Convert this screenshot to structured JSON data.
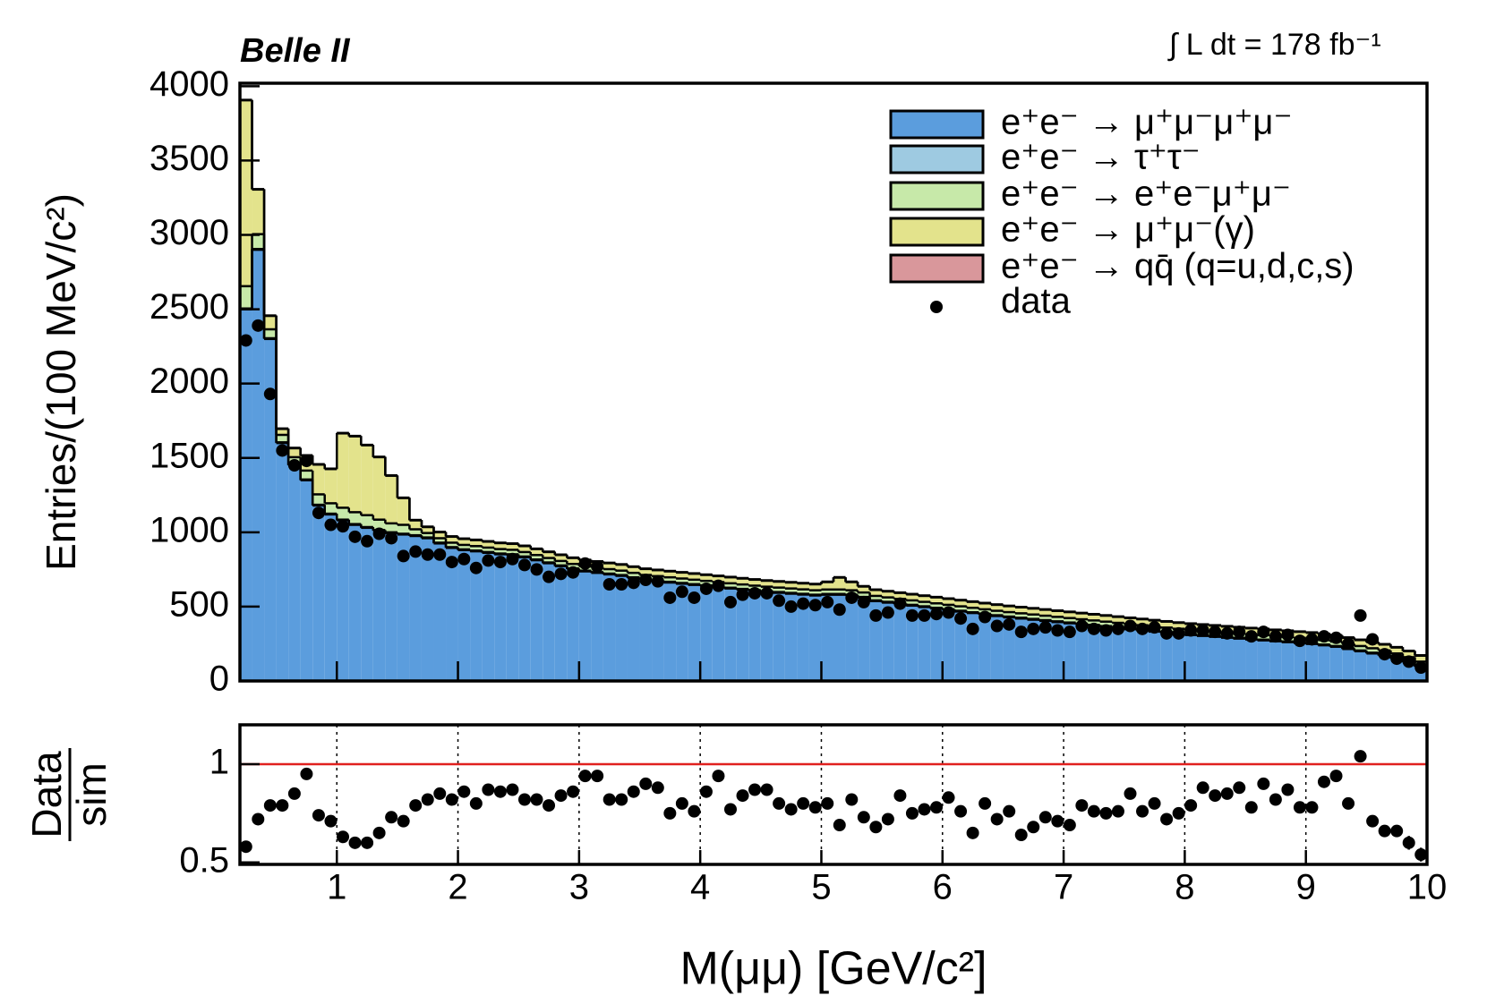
{
  "chart_data": [
    {
      "type": "histogram",
      "experiment": "Belle II",
      "luminosity": "∫ L dt = 178 fb⁻¹",
      "ylabel": "Entries/(100 MeV/c²)",
      "xlim": [
        0.2,
        10
      ],
      "ylim": [
        0,
        4020
      ],
      "yticks": [
        0,
        500,
        1000,
        1500,
        2000,
        2500,
        3000,
        3500,
        4000
      ],
      "bins": [
        0.2,
        0.3,
        0.4,
        0.5,
        0.6,
        0.7,
        0.8,
        0.9,
        1.0,
        1.1,
        1.2,
        1.3,
        1.4,
        1.5,
        1.6,
        1.7,
        1.8,
        1.9,
        2.0,
        2.1,
        2.2,
        2.3,
        2.4,
        2.5,
        2.6,
        2.7,
        2.8,
        2.9,
        3.0,
        3.1,
        3.2,
        3.3,
        3.4,
        3.5,
        3.6,
        3.7,
        3.8,
        3.9,
        4.0,
        4.1,
        4.2,
        4.3,
        4.4,
        4.5,
        4.6,
        4.7,
        4.8,
        4.9,
        5.0,
        5.1,
        5.2,
        5.3,
        5.4,
        5.5,
        5.6,
        5.7,
        5.8,
        5.9,
        6.0,
        6.1,
        6.2,
        6.3,
        6.4,
        6.5,
        6.6,
        6.7,
        6.8,
        6.9,
        7.0,
        7.1,
        7.2,
        7.3,
        7.4,
        7.5,
        7.6,
        7.7,
        7.8,
        7.9,
        8.0,
        8.1,
        8.2,
        8.3,
        8.4,
        8.5,
        8.6,
        8.7,
        8.8,
        8.9,
        9.0,
        9.1,
        9.2,
        9.3,
        9.4,
        9.5,
        9.6,
        9.7,
        9.8,
        9.9,
        10.0
      ],
      "stacked": true,
      "series": [
        {
          "name": "e⁺e⁻ → μ⁺μ⁻μ⁺μ⁻",
          "color": "#5b9ddd",
          "values": [
            2500,
            2900,
            2300,
            1600,
            1450,
            1350,
            1180,
            1120,
            1080,
            1050,
            1030,
            1010,
            995,
            985,
            975,
            960,
            925,
            895,
            880,
            872,
            862,
            852,
            847,
            832,
            812,
            792,
            772,
            752,
            737,
            727,
            717,
            707,
            692,
            678,
            670,
            662,
            654,
            646,
            638,
            630,
            622,
            614,
            606,
            599,
            593,
            587,
            581,
            575,
            580,
            580,
            575,
            560,
            537,
            527,
            517,
            507,
            497,
            487,
            477,
            467,
            457,
            447,
            437,
            428,
            420,
            412,
            404,
            396,
            388,
            380,
            372,
            364,
            356,
            348,
            340,
            332,
            324,
            316,
            309,
            303,
            297,
            291,
            285,
            279,
            273,
            267,
            261,
            255,
            249,
            240,
            230,
            215,
            200,
            185,
            170,
            150,
            125,
            95
          ]
        },
        {
          "name": "e⁺e⁻ → τ⁺τ⁻",
          "color": "#9ecae1",
          "values": [
            5,
            5,
            5,
            5,
            5,
            5,
            5,
            5,
            5,
            5,
            5,
            5,
            5,
            5,
            5,
            5,
            5,
            5,
            5,
            5,
            5,
            5,
            5,
            5,
            5,
            5,
            5,
            5,
            5,
            5,
            5,
            5,
            5,
            5,
            5,
            5,
            5,
            5,
            5,
            5,
            5,
            5,
            5,
            5,
            5,
            5,
            5,
            5,
            5,
            5,
            5,
            5,
            5,
            5,
            5,
            5,
            5,
            5,
            5,
            5,
            5,
            5,
            5,
            5,
            5,
            5,
            5,
            5,
            5,
            5,
            5,
            5,
            5,
            5,
            5,
            5,
            5,
            5,
            5,
            5,
            5,
            5,
            5,
            5,
            5,
            5,
            5,
            5,
            5,
            5,
            5,
            5,
            5,
            5,
            5,
            5,
            5,
            5
          ]
        },
        {
          "name": "e⁺e⁻ → e⁺e⁻μ⁺μ⁻",
          "color": "#c7e9a9",
          "values": [
            150,
            100,
            60,
            50,
            50,
            60,
            70,
            70,
            80,
            80,
            80,
            70,
            60,
            60,
            40,
            30,
            30,
            30,
            30,
            30,
            30,
            30,
            30,
            30,
            30,
            30,
            30,
            30,
            30,
            30,
            30,
            30,
            30,
            30,
            30,
            30,
            30,
            30,
            30,
            30,
            30,
            30,
            30,
            30,
            30,
            30,
            30,
            30,
            30,
            30,
            30,
            30,
            30,
            30,
            30,
            30,
            30,
            30,
            30,
            30,
            30,
            30,
            30,
            30,
            30,
            30,
            30,
            30,
            30,
            30,
            30,
            30,
            30,
            30,
            30,
            30,
            30,
            30,
            30,
            30,
            30,
            30,
            30,
            30,
            30,
            30,
            30,
            30,
            30,
            30,
            30,
            30,
            30,
            30,
            30,
            30,
            30,
            30
          ]
        },
        {
          "name": "e⁺e⁻ → μ⁺μ⁻(γ)",
          "color": "#e3e38c",
          "values": [
            1250,
            300,
            90,
            40,
            60,
            100,
            200,
            230,
            500,
            510,
            470,
            420,
            320,
            180,
            60,
            40,
            40,
            40,
            40,
            40,
            40,
            40,
            40,
            40,
            40,
            40,
            40,
            40,
            40,
            40,
            40,
            40,
            40,
            40,
            40,
            40,
            40,
            40,
            40,
            40,
            40,
            40,
            40,
            40,
            40,
            40,
            40,
            40,
            50,
            80,
            55,
            40,
            40,
            40,
            40,
            40,
            40,
            40,
            40,
            40,
            40,
            40,
            40,
            40,
            40,
            40,
            40,
            40,
            40,
            40,
            40,
            40,
            40,
            40,
            40,
            40,
            40,
            40,
            40,
            40,
            40,
            40,
            40,
            40,
            40,
            40,
            40,
            40,
            40,
            40,
            40,
            40,
            40,
            40,
            40,
            40,
            40,
            40
          ]
        },
        {
          "name": "e⁺e⁻ → qq̄ (q=u,d,c,s)",
          "color": "#d9979b",
          "values": [
            3,
            3,
            3,
            3,
            3,
            3,
            3,
            3,
            3,
            3,
            3,
            3,
            3,
            3,
            3,
            3,
            3,
            3,
            3,
            3,
            3,
            3,
            3,
            3,
            3,
            3,
            3,
            3,
            3,
            3,
            3,
            3,
            3,
            3,
            3,
            3,
            3,
            3,
            3,
            3,
            3,
            3,
            3,
            3,
            3,
            3,
            3,
            3,
            3,
            3,
            3,
            3,
            3,
            3,
            3,
            3,
            3,
            3,
            3,
            3,
            3,
            3,
            3,
            3,
            3,
            3,
            3,
            3,
            3,
            3,
            3,
            3,
            3,
            3,
            3,
            3,
            3,
            3,
            3,
            3,
            3,
            3,
            3,
            3,
            3,
            3,
            3,
            3,
            3,
            3,
            3,
            3,
            3,
            3,
            3,
            3,
            3,
            3
          ]
        }
      ],
      "data": {
        "name": "data",
        "color": "#000000",
        "values": [
          2290,
          2390,
          1930,
          1550,
          1450,
          1480,
          1130,
          1050,
          1040,
          970,
          940,
          990,
          960,
          840,
          870,
          850,
          850,
          800,
          820,
          760,
          810,
          800,
          820,
          780,
          750,
          700,
          720,
          730,
          790,
          770,
          650,
          650,
          660,
          680,
          670,
          560,
          600,
          560,
          620,
          640,
          530,
          580,
          590,
          590,
          540,
          500,
          520,
          510,
          530,
          480,
          560,
          530,
          440,
          460,
          520,
          440,
          440,
          450,
          460,
          420,
          350,
          430,
          370,
          380,
          330,
          350,
          360,
          340,
          330,
          370,
          350,
          340,
          350,
          370,
          350,
          360,
          320,
          320,
          340,
          340,
          330,
          320,
          330,
          300,
          330,
          300,
          310,
          270,
          280,
          300,
          290,
          250,
          440,
          280,
          180,
          150,
          130,
          90
        ]
      },
      "legend": "upper right"
    },
    {
      "type": "scatter",
      "ylabel_top": "Data",
      "ylabel_bottom": "sim",
      "xlabel": "M(μμ) [GeV/c²]",
      "xlim": [
        0.2,
        10
      ],
      "xticks": [
        1,
        2,
        3,
        4,
        5,
        6,
        7,
        8,
        9,
        10
      ],
      "ylim": [
        0.49,
        1.2
      ],
      "yticks": [
        0.5,
        1
      ],
      "grid": true,
      "reference": 1,
      "reference_color": "#e0201e",
      "color": "#000000",
      "values": [
        0.58,
        0.72,
        0.79,
        0.79,
        0.85,
        0.95,
        0.74,
        0.71,
        0.63,
        0.6,
        0.6,
        0.65,
        0.73,
        0.71,
        0.79,
        0.82,
        0.85,
        0.82,
        0.86,
        0.8,
        0.87,
        0.86,
        0.87,
        0.82,
        0.82,
        0.79,
        0.84,
        0.86,
        0.94,
        0.94,
        0.82,
        0.82,
        0.86,
        0.9,
        0.88,
        0.75,
        0.8,
        0.76,
        0.86,
        0.94,
        0.77,
        0.84,
        0.87,
        0.87,
        0.8,
        0.77,
        0.8,
        0.78,
        0.8,
        0.69,
        0.82,
        0.73,
        0.68,
        0.72,
        0.84,
        0.75,
        0.77,
        0.78,
        0.83,
        0.76,
        0.65,
        0.8,
        0.72,
        0.76,
        0.64,
        0.68,
        0.73,
        0.71,
        0.69,
        0.79,
        0.76,
        0.75,
        0.76,
        0.85,
        0.76,
        0.8,
        0.72,
        0.75,
        0.79,
        0.88,
        0.84,
        0.85,
        0.88,
        0.78,
        0.9,
        0.82,
        0.87,
        0.78,
        0.78,
        0.91,
        0.94,
        0.8,
        1.04,
        0.71,
        0.66,
        0.66,
        0.6,
        0.54
      ],
      "errors": [
        0.02,
        0.02,
        0.02,
        0.02,
        0.02,
        0.02,
        0.02,
        0.02,
        0.02,
        0.02,
        0.02,
        0.02,
        0.02,
        0.02,
        0.02,
        0.02,
        0.02,
        0.02,
        0.02,
        0.02,
        0.02,
        0.02,
        0.02,
        0.02,
        0.02,
        0.02,
        0.02,
        0.02,
        0.02,
        0.02,
        0.02,
        0.02,
        0.02,
        0.02,
        0.02,
        0.02,
        0.02,
        0.02,
        0.02,
        0.02,
        0.02,
        0.02,
        0.02,
        0.02,
        0.02,
        0.02,
        0.02,
        0.02,
        0.02,
        0.02,
        0.02,
        0.02,
        0.02,
        0.02,
        0.02,
        0.02,
        0.02,
        0.02,
        0.02,
        0.02,
        0.02,
        0.02,
        0.02,
        0.02,
        0.02,
        0.02,
        0.02,
        0.02,
        0.02,
        0.02,
        0.02,
        0.02,
        0.02,
        0.02,
        0.02,
        0.02,
        0.02,
        0.02,
        0.02,
        0.02,
        0.02,
        0.02,
        0.02,
        0.02,
        0.02,
        0.02,
        0.02,
        0.02,
        0.02,
        0.02,
        0.025,
        0.025,
        0.03,
        0.03,
        0.03,
        0.03,
        0.035,
        0.035
      ]
    }
  ]
}
